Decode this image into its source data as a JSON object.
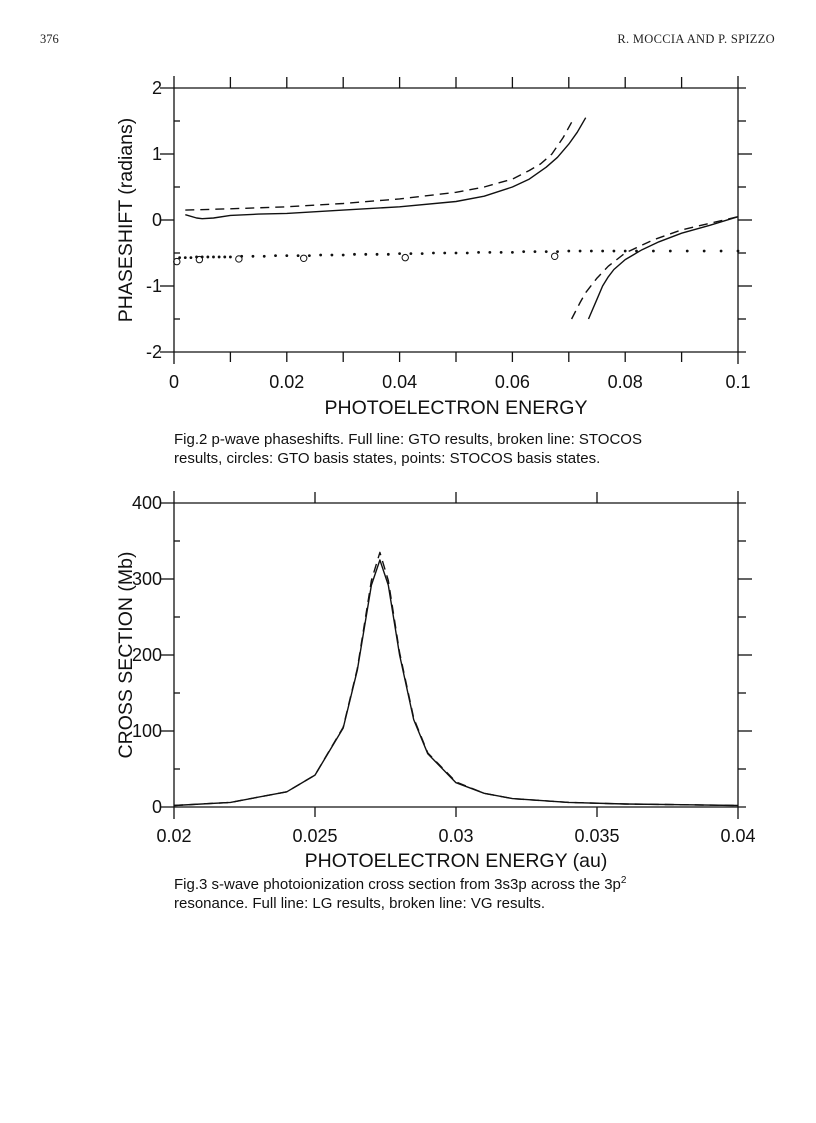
{
  "header": {
    "page_number": "376",
    "running_head": "R. MOCCIA AND P. SPIZZO"
  },
  "captions": {
    "fig2_line1": "Fig.2  p-wave phaseshifts. Full line: GTO results, broken line: STOCOS",
    "fig2_line2": "results, circles: GTO basis states, points: STOCOS basis states.",
    "fig3_line1": "Fig.3 s-wave photoionization cross section from 3s3p across the 3p",
    "fig3_sup": "2",
    "fig3_line2": "resonance. Full line: LG results, broken line: VG results."
  },
  "chart_data": [
    {
      "type": "line",
      "xlabel": "PHOTOELECTRON ENERGY",
      "ylabel": "PHASESHIFT (radians)",
      "xlim": [
        0,
        0.1
      ],
      "ylim": [
        -2,
        2
      ],
      "xticks": [
        "0",
        "0.02",
        "0.04",
        "0.06",
        "0.08",
        "0.1"
      ],
      "yticks": [
        "-2",
        "-1",
        "0",
        "1",
        "2"
      ],
      "grid": false,
      "series": [
        {
          "style": "solid",
          "segments": [
            {
              "x": [
                0.002,
                0.004,
                0.005,
                0.007,
                0.01,
                0.015,
                0.02,
                0.03,
                0.04,
                0.05,
                0.055,
                0.06,
                0.063,
                0.066,
                0.068,
                0.07,
                0.0715,
                0.073
              ],
              "y": [
                0.08,
                0.03,
                0.02,
                0.03,
                0.07,
                0.09,
                0.1,
                0.15,
                0.2,
                0.28,
                0.36,
                0.5,
                0.62,
                0.8,
                0.95,
                1.15,
                1.33,
                1.55
              ]
            },
            {
              "x": [
                0.0735,
                0.075,
                0.076,
                0.077,
                0.078,
                0.08,
                0.083,
                0.086,
                0.09,
                0.095,
                0.1
              ],
              "y": [
                -1.5,
                -1.2,
                -1.0,
                -0.86,
                -0.75,
                -0.6,
                -0.45,
                -0.33,
                -0.2,
                -0.08,
                0.05
              ]
            }
          ]
        },
        {
          "style": "dashed",
          "segments": [
            {
              "x": [
                0.002,
                0.01,
                0.02,
                0.03,
                0.04,
                0.05,
                0.055,
                0.06,
                0.063,
                0.065,
                0.067,
                0.069,
                0.0705
              ],
              "y": [
                0.15,
                0.17,
                0.2,
                0.25,
                0.32,
                0.42,
                0.5,
                0.62,
                0.75,
                0.85,
                1.0,
                1.25,
                1.48
              ]
            },
            {
              "x": [
                0.0705,
                0.072,
                0.073,
                0.075,
                0.077,
                0.08,
                0.085,
                0.09,
                0.095,
                0.1
              ],
              "y": [
                -1.5,
                -1.25,
                -1.1,
                -0.88,
                -0.7,
                -0.5,
                -0.3,
                -0.15,
                -0.05,
                0.05
              ]
            }
          ]
        },
        {
          "style": "points",
          "x": [
            0.001,
            0.002,
            0.003,
            0.004,
            0.005,
            0.006,
            0.007,
            0.008,
            0.009,
            0.01,
            0.012,
            0.014,
            0.016,
            0.018,
            0.02,
            0.022,
            0.024,
            0.026,
            0.028,
            0.03,
            0.032,
            0.034,
            0.036,
            0.038,
            0.04,
            0.042,
            0.044,
            0.046,
            0.048,
            0.05,
            0.052,
            0.054,
            0.056,
            0.058,
            0.06,
            0.062,
            0.064,
            0.066,
            0.068,
            0.07,
            0.072,
            0.074,
            0.076,
            0.078,
            0.08,
            0.082,
            0.085,
            0.088,
            0.091,
            0.094,
            0.097,
            0.1
          ],
          "y": [
            -0.57,
            -0.57,
            -0.57,
            -0.56,
            -0.56,
            -0.56,
            -0.56,
            -0.56,
            -0.56,
            -0.56,
            -0.55,
            -0.55,
            -0.55,
            -0.54,
            -0.54,
            -0.54,
            -0.54,
            -0.53,
            -0.53,
            -0.53,
            -0.52,
            -0.52,
            -0.52,
            -0.52,
            -0.51,
            -0.51,
            -0.51,
            -0.5,
            -0.5,
            -0.5,
            -0.5,
            -0.49,
            -0.49,
            -0.49,
            -0.49,
            -0.48,
            -0.48,
            -0.48,
            -0.48,
            -0.47,
            -0.47,
            -0.47,
            -0.47,
            -0.47,
            -0.47,
            -0.47,
            -0.47,
            -0.47,
            -0.47,
            -0.47,
            -0.47,
            -0.47
          ]
        },
        {
          "style": "circles",
          "x": [
            0.0005,
            0.0045,
            0.0115,
            0.023,
            0.041,
            0.0675
          ],
          "y": [
            -0.63,
            -0.6,
            -0.59,
            -0.58,
            -0.57,
            -0.55
          ]
        }
      ]
    },
    {
      "type": "line",
      "xlabel": "PHOTOELECTRON  ENERGY  (au)",
      "ylabel": "CROSS  SECTION  (Mb)",
      "xlim": [
        0.02,
        0.04
      ],
      "ylim": [
        0,
        400
      ],
      "xticks": [
        "0.02",
        "0.025",
        "0.03",
        "0.035",
        "0.04"
      ],
      "yticks": [
        "0",
        "100",
        "200",
        "300",
        "400"
      ],
      "grid": false,
      "series": [
        {
          "style": "solid",
          "x": [
            0.02,
            0.022,
            0.024,
            0.025,
            0.026,
            0.0265,
            0.027,
            0.0273,
            0.0276,
            0.028,
            0.0285,
            0.029,
            0.03,
            0.031,
            0.032,
            0.034,
            0.036,
            0.038,
            0.04
          ],
          "y": [
            2,
            6,
            20,
            42,
            104,
            180,
            292,
            325,
            292,
            200,
            115,
            70,
            32,
            18,
            11,
            6,
            4,
            3,
            2
          ]
        },
        {
          "style": "dashed",
          "x": [
            0.02,
            0.022,
            0.024,
            0.025,
            0.026,
            0.0265,
            0.027,
            0.0273,
            0.0276,
            0.028,
            0.0285,
            0.029,
            0.03,
            0.031,
            0.032,
            0.034,
            0.036,
            0.038,
            0.04
          ],
          "y": [
            2,
            6,
            20,
            42,
            105,
            182,
            298,
            335,
            298,
            203,
            117,
            71,
            33,
            18,
            11,
            6,
            4,
            3,
            2
          ]
        }
      ]
    }
  ]
}
